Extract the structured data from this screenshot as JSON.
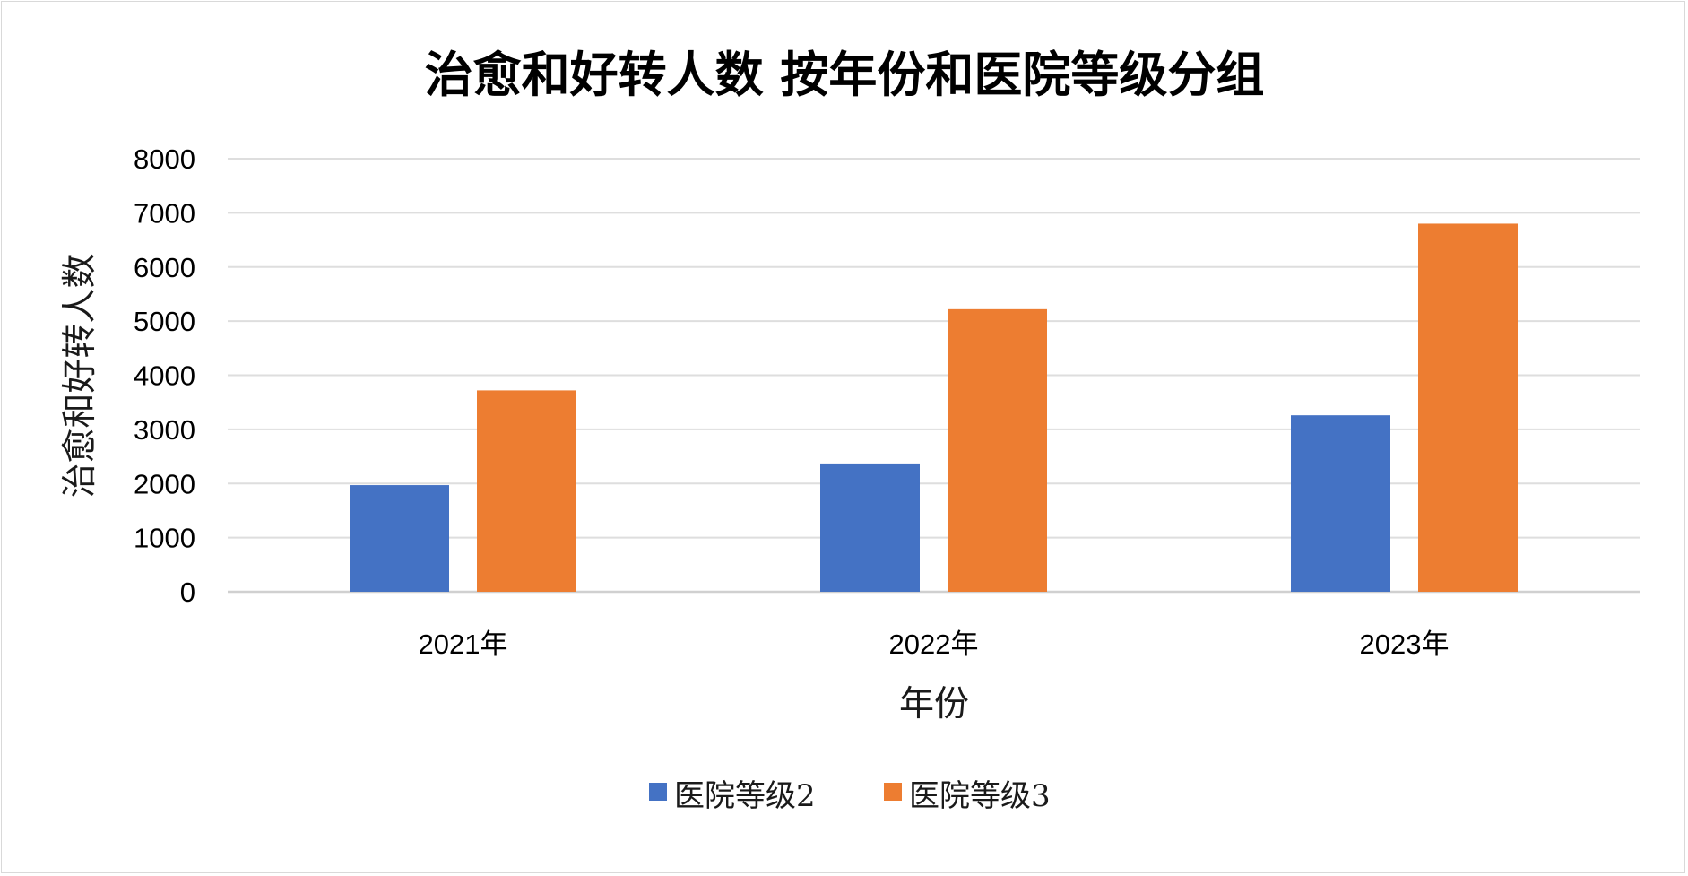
{
  "chart_data": {
    "type": "bar",
    "title": "治愈和好转人数 按年份和医院等级分组",
    "xlabel": "年份",
    "ylabel": "治愈和好转人数",
    "categories": [
      "2021年",
      "2022年",
      "2023年"
    ],
    "series": [
      {
        "name": "医院等级2",
        "color": "#4472c4",
        "values": [
          1970,
          2370,
          3260
        ]
      },
      {
        "name": "医院等级3",
        "color": "#ed7d31",
        "values": [
          3720,
          5220,
          6800
        ]
      }
    ],
    "ylim": [
      0,
      8000
    ],
    "yticks": [
      "0",
      "1000",
      "2000",
      "3000",
      "4000",
      "5000",
      "6000",
      "7000",
      "8000"
    ],
    "grid": true,
    "legend_position": "bottom"
  }
}
